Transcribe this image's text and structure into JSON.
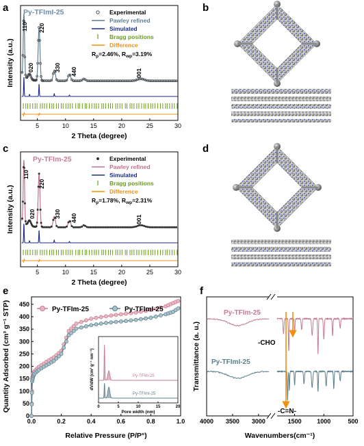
{
  "panels": {
    "a": {
      "letter": "a",
      "sample": "Py-TFImI-25",
      "legend": [
        "Experimental",
        "Pawley refined",
        "Simulated",
        "Bragg positions",
        "Difference"
      ],
      "rp": "R",
      "rp_sub": "p",
      "rp_val": "=2.46%, R",
      "rwp_sub": "wp",
      "rwp_val": "=3.19%",
      "peaks": [
        "110",
        "020",
        "220",
        "330",
        "440",
        "001"
      ],
      "xlabel": "2 Theta (degree)",
      "ylabel": "Intensity (a.u.)",
      "xticks": [
        "5",
        "10",
        "15",
        "20",
        "25",
        "30"
      ]
    },
    "b": {
      "letter": "b"
    },
    "c": {
      "letter": "c",
      "sample": "Py-TFIm-25",
      "legend": [
        "Experimental",
        "Pawley refined",
        "Simulated",
        "Bragg positions",
        "Difference"
      ],
      "rp": "R",
      "rp_sub": "p",
      "rp_val": "=1.78%, R",
      "rwp_sub": "wp",
      "rwp_val": "=2.31%",
      "peaks": [
        "110",
        "020",
        "220",
        "330",
        "440",
        "001"
      ],
      "xlabel": "2 Theta (degree)",
      "ylabel": "Intensity (a.u.)",
      "xticks": [
        "5",
        "10",
        "15",
        "20",
        "25",
        "30"
      ]
    },
    "d": {
      "letter": "d"
    },
    "e": {
      "letter": "e",
      "legend": [
        "Py-TFIm-25",
        "Py-TFImI-25"
      ],
      "xlabel": "Relative Pressure (P/P°)",
      "ylabel": "Quantity Adsorbed (cm³ g⁻¹ STP)",
      "xticks": [
        "0.0",
        "0.2",
        "0.4",
        "0.6",
        "0.8",
        "1.0"
      ],
      "yticks": [
        "0",
        "50",
        "100",
        "150",
        "200",
        "250",
        "300",
        "350",
        "400",
        "450"
      ],
      "inset": {
        "ylabel": "dV/dW (cm³ g⁻¹ nm⁻¹)",
        "xlabel": "Pore width (nm)",
        "xticks": [
          "0",
          "5",
          "10",
          "15",
          "20"
        ],
        "labels": [
          "Py-TFIm-25",
          "Py-TFImI-25"
        ]
      }
    },
    "f": {
      "letter": "f",
      "labels": [
        "Py-TFIm-25",
        "Py-TFImI-25"
      ],
      "cho": "-CHO",
      "cn": "-C=N-",
      "xlabel": "Wavenumbers(cm⁻¹)",
      "ylabel": "Transmittance (a. u.)",
      "xticks": [
        "4000",
        "3500",
        "3000",
        "1500",
        "1000",
        "500"
      ]
    }
  },
  "colors": {
    "experimental_marker": "#3a3a3a",
    "pawley_a": "#5f7f8f",
    "pawley_c": "#c0728a",
    "simulated": "#1a2a8a",
    "bragg": "#6a9a1e",
    "difference": "#f0900e",
    "sample_a_title": "#6e8ca6",
    "sample_c_title": "#c97b94",
    "tfim": "#c67b8f",
    "tfimi": "#5b7f8c",
    "arrow": "#f0900e"
  },
  "chart_data": [
    {
      "type": "line",
      "panel": "a",
      "title": "Py-TFImI-25",
      "xlabel": "2 Theta (degree)",
      "ylabel": "Intensity (a.u.)",
      "xlim": [
        2,
        30
      ],
      "peaks": [
        {
          "label": "110",
          "x": 2.6
        },
        {
          "label": "020",
          "x": 3.6
        },
        {
          "label": "220",
          "x": 5.3
        },
        {
          "label": "330",
          "x": 8.0
        },
        {
          "label": "440",
          "x": 10.7
        },
        {
          "label": "001",
          "x": 23.4
        }
      ],
      "series": [
        {
          "name": "Experimental"
        },
        {
          "name": "Pawley refined"
        },
        {
          "name": "Simulated"
        },
        {
          "name": "Bragg positions"
        },
        {
          "name": "Difference"
        }
      ],
      "legend": "top-right"
    },
    {
      "type": "line",
      "panel": "c",
      "title": "Py-TFIm-25",
      "xlabel": "2 Theta (degree)",
      "ylabel": "Intensity (a.u.)",
      "xlim": [
        2,
        30
      ],
      "peaks": [
        {
          "label": "110",
          "x": 2.6
        },
        {
          "label": "020",
          "x": 3.6
        },
        {
          "label": "220",
          "x": 5.3
        },
        {
          "label": "330",
          "x": 8.0
        },
        {
          "label": "440",
          "x": 10.7
        },
        {
          "label": "001",
          "x": 23.4
        }
      ],
      "series": [
        {
          "name": "Experimental"
        },
        {
          "name": "Pawley refined"
        },
        {
          "name": "Simulated"
        },
        {
          "name": "Bragg positions"
        },
        {
          "name": "Difference"
        }
      ],
      "legend": "top-right"
    },
    {
      "type": "line",
      "panel": "e",
      "xlabel": "Relative Pressure (P/P°)",
      "ylabel": "Quantity Adsorbed (cm³ g⁻¹ STP)",
      "xlim": [
        0,
        1.0
      ],
      "ylim": [
        0,
        480
      ],
      "legend": "top-left",
      "series": [
        {
          "name": "Py-TFIm-25",
          "x": [
            0.0,
            0.005,
            0.01,
            0.02,
            0.05,
            0.1,
            0.15,
            0.2,
            0.25,
            0.3,
            0.4,
            0.5,
            0.6,
            0.7,
            0.8,
            0.9,
            0.95,
            1.0
          ],
          "y": [
            0,
            150,
            170,
            180,
            198,
            218,
            236,
            262,
            342,
            372,
            392,
            402,
            410,
            417,
            427,
            442,
            455,
            468
          ]
        },
        {
          "name": "Py-TFImI-25",
          "x": [
            0.0,
            0.005,
            0.01,
            0.02,
            0.05,
            0.1,
            0.15,
            0.2,
            0.25,
            0.3,
            0.4,
            0.5,
            0.6,
            0.7,
            0.8,
            0.9,
            0.95,
            1.0
          ],
          "y": [
            0,
            140,
            158,
            170,
            186,
            204,
            222,
            250,
            325,
            352,
            366,
            375,
            381,
            387,
            396,
            410,
            420,
            440
          ]
        }
      ]
    },
    {
      "type": "line",
      "panel": "e-inset",
      "xlabel": "Pore width (nm)",
      "ylabel": "dV/dW (cm³ g⁻¹ nm⁻¹)",
      "xlim": [
        0,
        20
      ],
      "series": [
        {
          "name": "Py-TFIm-25",
          "peaks_x": [
            1.5,
            2.6
          ]
        },
        {
          "name": "Py-TFImI-25",
          "peaks_x": [
            1.5,
            2.6
          ]
        }
      ]
    },
    {
      "type": "line",
      "panel": "f",
      "xlabel": "Wavenumbers(cm⁻¹)",
      "ylabel": "Transmittance (a. u.)",
      "x_ticks": [
        4000,
        3500,
        3000,
        1500,
        1000,
        500
      ],
      "annotations": [
        {
          "text": "-CHO",
          "x": 1690
        },
        {
          "text": "-C=N-",
          "x": 1620
        }
      ],
      "series": [
        {
          "name": "Py-TFIm-25"
        },
        {
          "name": "Py-TFImI-25"
        }
      ]
    }
  ]
}
